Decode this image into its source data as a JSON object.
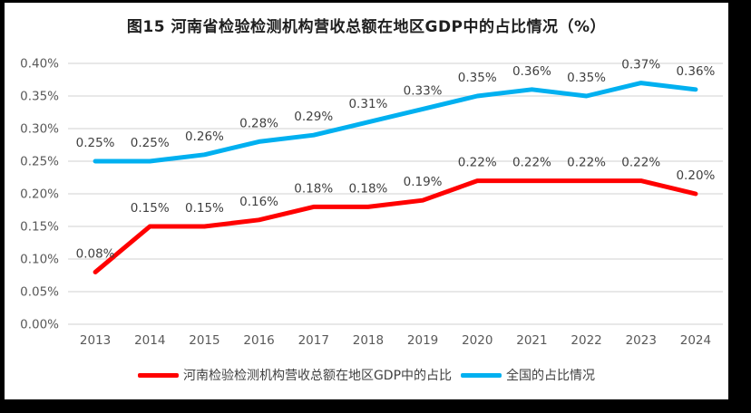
{
  "title": "图15  河南省检验检测机构营收总额在地区GDP中的占比情况（%）",
  "chart_data": {
    "type": "line",
    "title": "图15  河南省检验检测机构营收总额在地区GDP中的占比情况（%）",
    "categories": [
      "2013",
      "2014",
      "2015",
      "2016",
      "2017",
      "2018",
      "2019",
      "2020",
      "2021",
      "2022",
      "2023",
      "2024"
    ],
    "series": [
      {
        "name": "河南检验检测机构营收总额在地区GDP中的占比",
        "color": "#FF0000",
        "values": [
          0.08,
          0.15,
          0.15,
          0.16,
          0.18,
          0.18,
          0.19,
          0.22,
          0.22,
          0.22,
          0.22,
          0.2
        ],
        "labels": [
          "0.08%",
          "0.15%",
          "0.15%",
          "0.16%",
          "0.18%",
          "0.18%",
          "0.19%",
          "0.22%",
          "0.22%",
          "0.22%",
          "0.22%",
          "0.20%"
        ]
      },
      {
        "name": "全国的占比情况",
        "color": "#00B0F0",
        "values": [
          0.25,
          0.25,
          0.26,
          0.28,
          0.29,
          0.31,
          0.33,
          0.35,
          0.36,
          0.35,
          0.37,
          0.36
        ],
        "labels": [
          "0.25%",
          "0.25%",
          "0.26%",
          "0.28%",
          "0.29%",
          "0.31%",
          "0.33%",
          "0.35%",
          "0.36%",
          "0.35%",
          "0.37%",
          "0.36%"
        ]
      }
    ],
    "xlabel": "",
    "ylabel": "",
    "ylim": [
      0,
      0.4
    ],
    "yticks": [
      {
        "value": 0.0,
        "label": "0.00%"
      },
      {
        "value": 0.05,
        "label": "0.05%"
      },
      {
        "value": 0.1,
        "label": "0.10%"
      },
      {
        "value": 0.15,
        "label": "0.15%"
      },
      {
        "value": 0.2,
        "label": "0.20%"
      },
      {
        "value": 0.25,
        "label": "0.25%"
      },
      {
        "value": 0.3,
        "label": "0.30%"
      },
      {
        "value": 0.35,
        "label": "0.35%"
      },
      {
        "value": 0.4,
        "label": "0.40%"
      }
    ],
    "grid": true,
    "legend_position": "bottom",
    "colors": {
      "grid": "#D9D9D9",
      "axis_text": "#595959",
      "data_label_text": "#404040",
      "background": "#FFFFFF",
      "frame_border": "#000000"
    }
  }
}
